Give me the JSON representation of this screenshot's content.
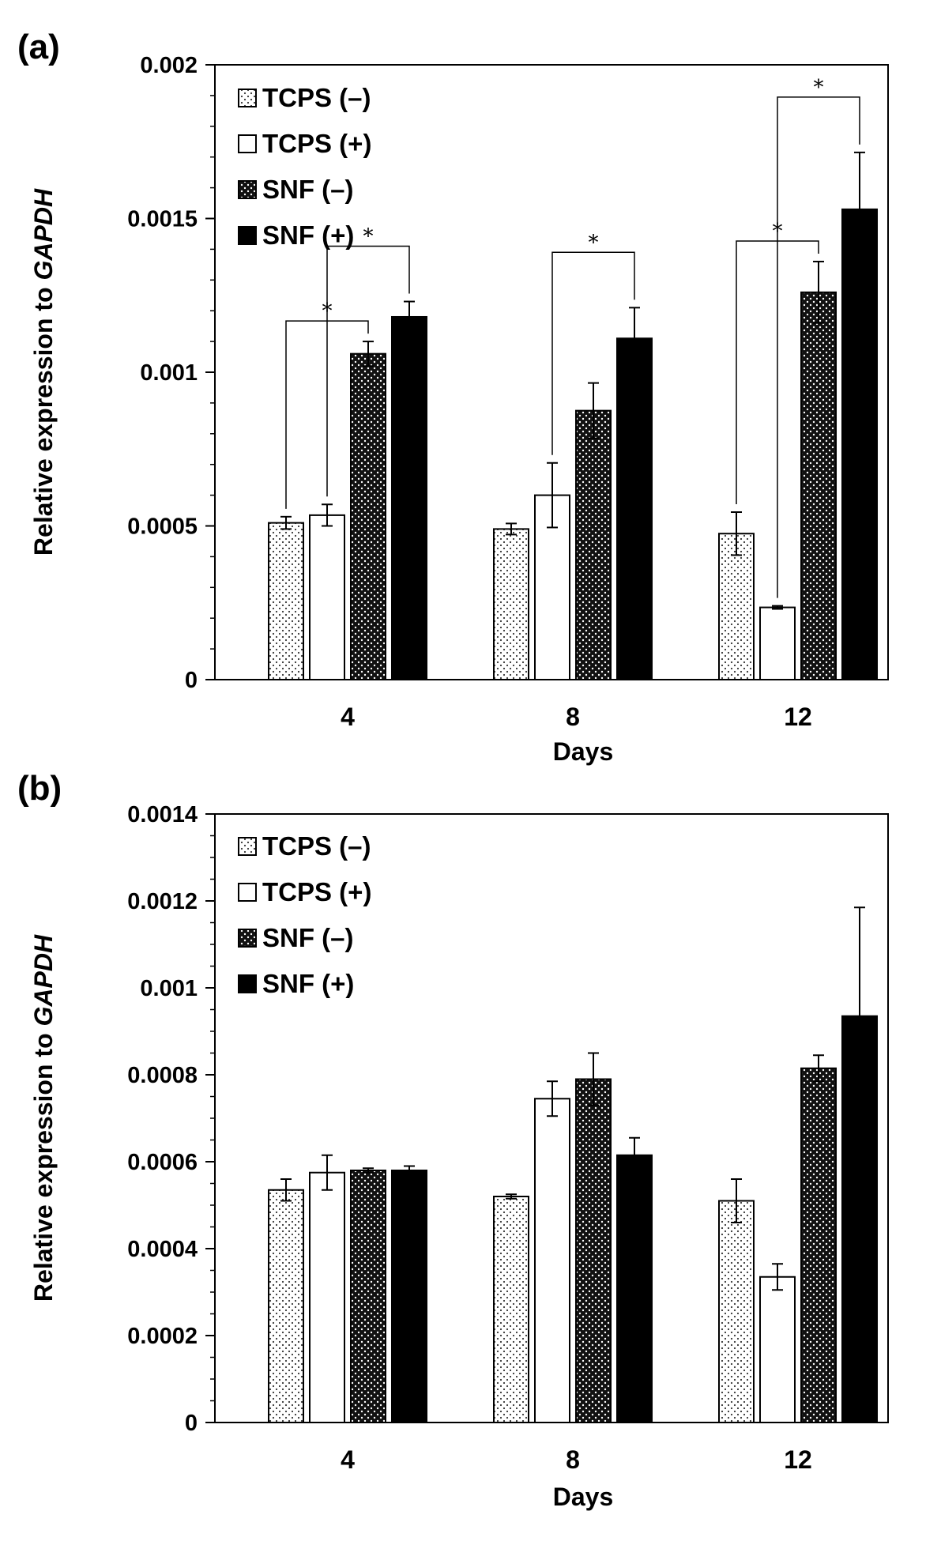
{
  "colors": {
    "tcps_minus_fill": "#ffffff",
    "tcps_minus_dots": "#333333",
    "tcps_plus_fill": "#ffffff",
    "snf_minus_fill": "#111111",
    "snf_minus_dots": "#ffffff",
    "snf_plus_fill": "#000000"
  },
  "chart_data": [
    {
      "type": "bar",
      "panel_label": "(a)",
      "categories": [
        "4",
        "8",
        "12"
      ],
      "xlabel": "Days",
      "ylabel_prefix": "Relative expression to ",
      "ylabel_gene": "GAPDH",
      "ylim": [
        0,
        0.002
      ],
      "yticks": [
        0,
        0.0005,
        0.001,
        0.0015,
        0.002
      ],
      "ytick_labels": [
        "0",
        "0.0005",
        "0.001",
        "0.0015",
        "0.002"
      ],
      "minor_ticks_per_major": 5,
      "grid": false,
      "legend_position": "top-left",
      "series": [
        {
          "name": "TCPS (–)",
          "style": "dotted-white",
          "values": [
            0.00051,
            0.00049,
            0.000475
          ],
          "errors": [
            2e-05,
            1.8e-05,
            7e-05
          ]
        },
        {
          "name": "TCPS (+)",
          "style": "white",
          "values": [
            0.000535,
            0.0006,
            0.000235
          ],
          "errors": [
            3.5e-05,
            0.000105,
            5e-06
          ]
        },
        {
          "name": "SNF (–)",
          "style": "dotted-black",
          "values": [
            0.00106,
            0.000875,
            0.00126
          ],
          "errors": [
            4e-05,
            9e-05,
            0.0001
          ]
        },
        {
          "name": "SNF (+)",
          "style": "black",
          "values": [
            0.00118,
            0.00111,
            0.00153
          ],
          "errors": [
            5e-05,
            0.0001,
            0.000185
          ]
        }
      ],
      "significance": [
        {
          "label": "*",
          "from": [
            0,
            0
          ],
          "to": [
            0,
            2
          ]
        },
        {
          "label": "*",
          "from": [
            0,
            1
          ],
          "to": [
            0,
            3
          ]
        },
        {
          "label": "*",
          "from": [
            1,
            1
          ],
          "to": [
            1,
            3
          ]
        },
        {
          "label": "*",
          "from": [
            2,
            0
          ],
          "to": [
            2,
            2
          ]
        },
        {
          "label": "*",
          "from": [
            2,
            1
          ],
          "to": [
            2,
            3
          ]
        }
      ]
    },
    {
      "type": "bar",
      "panel_label": "(b)",
      "categories": [
        "4",
        "8",
        "12"
      ],
      "xlabel": "Days",
      "ylabel_prefix": "Relative expression to ",
      "ylabel_gene": "GAPDH",
      "ylim": [
        0,
        0.0014
      ],
      "yticks": [
        0,
        0.0002,
        0.0004,
        0.0006,
        0.0008,
        0.001,
        0.0012,
        0.0014
      ],
      "ytick_labels": [
        "0",
        "0.0002",
        "0.0004",
        "0.0006",
        "0.0008",
        "0.001",
        "0.0012",
        "0.0014"
      ],
      "minor_ticks_per_major": 4,
      "grid": false,
      "legend_position": "top-left",
      "series": [
        {
          "name": "TCPS (–)",
          "style": "dotted-white",
          "values": [
            0.000535,
            0.00052,
            0.00051
          ],
          "errors": [
            2.5e-05,
            5e-06,
            5e-05
          ]
        },
        {
          "name": "TCPS (+)",
          "style": "white",
          "values": [
            0.000575,
            0.000745,
            0.000335
          ],
          "errors": [
            4e-05,
            4e-05,
            3e-05
          ]
        },
        {
          "name": "SNF (–)",
          "style": "dotted-black",
          "values": [
            0.00058,
            0.00079,
            0.000815
          ],
          "errors": [
            5e-06,
            6e-05,
            3e-05
          ]
        },
        {
          "name": "SNF (+)",
          "style": "black",
          "values": [
            0.00058,
            0.000615,
            0.000935
          ],
          "errors": [
            1e-05,
            4e-05,
            0.00025
          ]
        }
      ],
      "significance": []
    }
  ]
}
